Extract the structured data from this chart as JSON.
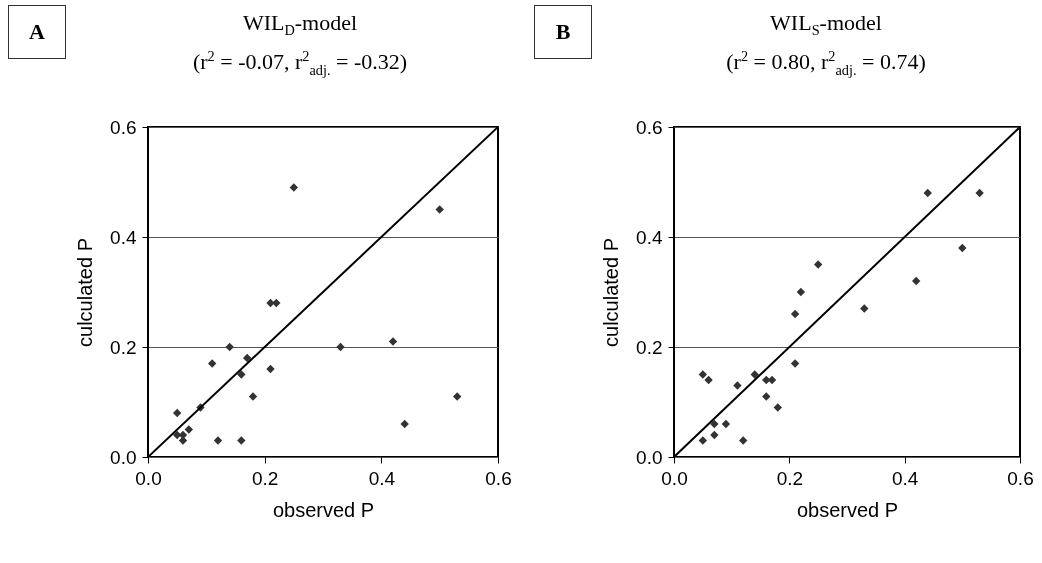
{
  "chart_data": [
    {
      "type": "scatter",
      "title": "WIL$_{D}$-model",
      "subtitle": "(r$^{2}$ = -0.07, r$^{2}$$_{adj.}$ = -0.32)",
      "annotations": [
        "A"
      ],
      "xlabel": "observed P",
      "ylabel": "culculated P",
      "xlim": [
        0,
        0.6
      ],
      "ylim": [
        0,
        0.6
      ],
      "xticks": [
        {
          "value": 0,
          "label": "0.0"
        },
        0.2,
        0.4,
        0.6
      ],
      "yticks": [
        {
          "value": 0,
          "label": "0.0"
        },
        0.2,
        0.4,
        0.6
      ],
      "grid": "y",
      "series": [
        {
          "type": "scatter",
          "marker": "diamond",
          "color": "#333333",
          "x": [
            0.25,
            0.5,
            0.21,
            0.22,
            0.14,
            0.33,
            0.42,
            0.11,
            0.17,
            0.16,
            0.21,
            0.18,
            0.53,
            0.09,
            0.05,
            0.44,
            0.05,
            0.07,
            0.06,
            0.06,
            0.12,
            0.16
          ],
          "values": [
            0.49,
            0.45,
            0.28,
            0.28,
            0.2,
            0.2,
            0.21,
            0.17,
            0.18,
            0.15,
            0.16,
            0.11,
            0.11,
            0.09,
            0.08,
            0.06,
            0.04,
            0.05,
            0.04,
            0.03,
            0.03,
            0.03
          ]
        },
        {
          "type": "line",
          "marker": "none",
          "color": "#000000",
          "x": [
            0,
            0.6
          ],
          "values": [
            0,
            0.6
          ]
        }
      ]
    },
    {
      "type": "scatter",
      "title": "WIL$_{S}$-model",
      "subtitle": "(r$^{2}$ = 0.80, r$^{2}$$_{adj.}$ = 0.74)",
      "annotations": [
        "B"
      ],
      "xlabel": "observed P",
      "ylabel": "culculated P",
      "xlim": [
        0,
        0.6
      ],
      "ylim": [
        0,
        0.6
      ],
      "xticks": [
        {
          "value": 0,
          "label": "0.0"
        },
        0.2,
        0.4,
        0.6
      ],
      "yticks": [
        {
          "value": 0,
          "label": "0.0"
        },
        0.2,
        0.4,
        0.6
      ],
      "grid": "y",
      "series": [
        {
          "type": "scatter",
          "marker": "diamond",
          "color": "#333333",
          "x": [
            0.44,
            0.53,
            0.5,
            0.25,
            0.42,
            0.22,
            0.33,
            0.21,
            0.21,
            0.05,
            0.06,
            0.14,
            0.16,
            0.17,
            0.11,
            0.16,
            0.18,
            0.09,
            0.07,
            0.07,
            0.05,
            0.12
          ],
          "values": [
            0.48,
            0.48,
            0.38,
            0.35,
            0.32,
            0.3,
            0.27,
            0.26,
            0.17,
            0.15,
            0.14,
            0.15,
            0.14,
            0.14,
            0.13,
            0.11,
            0.09,
            0.06,
            0.06,
            0.04,
            0.03,
            0.03
          ]
        },
        {
          "type": "line",
          "marker": "none",
          "color": "#000000",
          "x": [
            0,
            0.6
          ],
          "values": [
            0,
            0.6
          ]
        }
      ]
    }
  ]
}
